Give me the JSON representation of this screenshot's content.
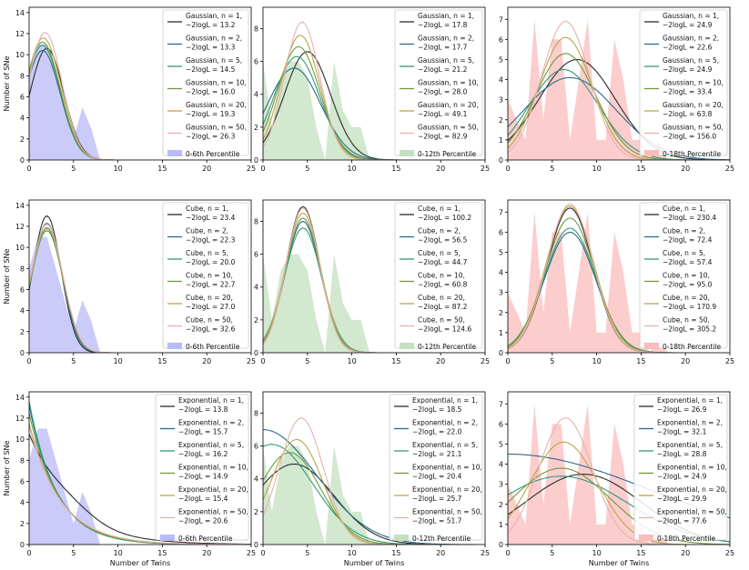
{
  "figure": {
    "ylabel": "Number of SNe",
    "xlabel": "Number of Twins",
    "xlim": [
      0,
      25
    ],
    "xticks": [
      0,
      5,
      10,
      15,
      20,
      25
    ]
  },
  "colors": {
    "n1": "#2b2b2b",
    "n2": "#2a6b8a",
    "n5": "#2f9a76",
    "n10": "#6e9a3a",
    "n20": "#b8a64a",
    "n50": "#e5b3ad",
    "fill6": "#b9baf7",
    "fill12": "#c3e0bf",
    "fill18": "#fbbcbc"
  },
  "chart_data": [
    {
      "type": "area+line",
      "row": 0,
      "col": 0,
      "model": "Gaussian",
      "percentile": "0-6th Percentile",
      "fillKey": "fill6",
      "ylim": [
        0,
        14.5
      ],
      "yticks": [
        0,
        2,
        4,
        6,
        8,
        10,
        12,
        14
      ],
      "hist": [
        8,
        11,
        11,
        8,
        5,
        2,
        5,
        3,
        0
      ],
      "series": [
        {
          "n": "1",
          "logl": "13.2",
          "peak_x": 2.0,
          "peak_y": 10.6,
          "sigma": 1.9
        },
        {
          "n": "2",
          "logl": "13.3",
          "peak_x": 1.5,
          "peak_y": 10.4,
          "sigma": 2.0
        },
        {
          "n": "5",
          "logl": "14.5",
          "peak_x": 1.5,
          "peak_y": 10.9,
          "sigma": 2.0
        },
        {
          "n": "10",
          "logl": "16.0",
          "peak_x": 1.5,
          "peak_y": 11.2,
          "sigma": 2.0
        },
        {
          "n": "20",
          "logl": "19.3",
          "peak_x": 1.6,
          "peak_y": 11.6,
          "sigma": 2.0
        },
        {
          "n": "50",
          "logl": "26.3",
          "peak_x": 1.8,
          "peak_y": 12.1,
          "sigma": 1.9
        }
      ]
    },
    {
      "type": "area+line",
      "row": 0,
      "col": 1,
      "model": "Gaussian",
      "percentile": "0-12th Percentile",
      "fillKey": "fill12",
      "ylim": [
        0,
        9.3
      ],
      "yticks": [
        0,
        2,
        4,
        6,
        8
      ],
      "hist": [
        6,
        2,
        5,
        6,
        6,
        5,
        2,
        0,
        6,
        3,
        2,
        2,
        0
      ],
      "series": [
        {
          "n": "1",
          "logl": "17.8",
          "peak_x": 5.0,
          "peak_y": 6.6,
          "sigma": 2.6
        },
        {
          "n": "2",
          "logl": "17.7",
          "peak_x": 3.5,
          "peak_y": 5.6,
          "sigma": 3.0
        },
        {
          "n": "5",
          "logl": "21.2",
          "peak_x": 3.8,
          "peak_y": 6.3,
          "sigma": 2.6
        },
        {
          "n": "10",
          "logl": "28.0",
          "peak_x": 4.0,
          "peak_y": 6.9,
          "sigma": 2.4
        },
        {
          "n": "20",
          "logl": "49.1",
          "peak_x": 4.2,
          "peak_y": 7.6,
          "sigma": 2.2
        },
        {
          "n": "50",
          "logl": "82.9",
          "peak_x": 4.4,
          "peak_y": 8.4,
          "sigma": 2.0
        }
      ]
    },
    {
      "type": "area+line",
      "row": 0,
      "col": 2,
      "model": "Gaussian",
      "percentile": "0-18th Percentile",
      "fillKey": "fill18",
      "ylim": [
        0,
        7.6
      ],
      "yticks": [
        0,
        1,
        2,
        3,
        4,
        5,
        6,
        7
      ],
      "hist": [
        3,
        2,
        1,
        7,
        2,
        6,
        6,
        1,
        4,
        7,
        1,
        1,
        6,
        4,
        1,
        1,
        0,
        1,
        0
      ],
      "series": [
        {
          "n": "1",
          "logl": "24.9",
          "peak_x": 7.8,
          "peak_y": 5.0,
          "sigma": 4.3
        },
        {
          "n": "2",
          "logl": "22.6",
          "peak_x": 7.0,
          "peak_y": 4.1,
          "sigma": 5.2
        },
        {
          "n": "5",
          "logl": "24.9",
          "peak_x": 6.3,
          "peak_y": 4.5,
          "sigma": 3.9
        },
        {
          "n": "10",
          "logl": "33.4",
          "peak_x": 6.5,
          "peak_y": 5.3,
          "sigma": 3.4
        },
        {
          "n": "20",
          "logl": "63.8",
          "peak_x": 6.5,
          "peak_y": 6.1,
          "sigma": 3.0
        },
        {
          "n": "50",
          "logl": "156.0",
          "peak_x": 6.5,
          "peak_y": 6.9,
          "sigma": 2.7
        }
      ]
    },
    {
      "type": "area+line",
      "row": 1,
      "col": 0,
      "model": "Cube",
      "percentile": "0-6th Percentile",
      "fillKey": "fill6",
      "ylim": [
        0,
        14.5
      ],
      "yticks": [
        0,
        2,
        4,
        6,
        8,
        10,
        12,
        14
      ],
      "hist": [
        8,
        11,
        11,
        8,
        5,
        2,
        5,
        3,
        0
      ],
      "series": [
        {
          "n": "1",
          "logl": "23.4",
          "peak_x": 2.0,
          "peak_y": 13.0,
          "sigma": 1.6
        },
        {
          "n": "2",
          "logl": "22.3",
          "peak_x": 2.0,
          "peak_y": 12.3,
          "sigma": 1.7
        },
        {
          "n": "5",
          "logl": "20.0",
          "peak_x": 2.0,
          "peak_y": 11.6,
          "sigma": 1.8
        },
        {
          "n": "10",
          "logl": "22.7",
          "peak_x": 2.0,
          "peak_y": 11.8,
          "sigma": 1.8
        },
        {
          "n": "20",
          "logl": "27.0",
          "peak_x": 2.0,
          "peak_y": 11.9,
          "sigma": 1.8
        },
        {
          "n": "50",
          "logl": "32.6",
          "peak_x": 2.0,
          "peak_y": 12.2,
          "sigma": 1.8
        }
      ]
    },
    {
      "type": "area+line",
      "row": 1,
      "col": 1,
      "model": "Cube",
      "percentile": "0-12th Percentile",
      "fillKey": "fill12",
      "ylim": [
        0,
        9.3
      ],
      "yticks": [
        0,
        2,
        4,
        6,
        8
      ],
      "hist": [
        6,
        2,
        5,
        6,
        6,
        5,
        2,
        0,
        6,
        3,
        2,
        2,
        0
      ],
      "series": [
        {
          "n": "1",
          "logl": "100.2",
          "peak_x": 4.5,
          "peak_y": 8.9,
          "sigma": 1.9
        },
        {
          "n": "2",
          "logl": "56.5",
          "peak_x": 4.5,
          "peak_y": 8.0,
          "sigma": 2.0
        },
        {
          "n": "5",
          "logl": "44.7",
          "peak_x": 4.5,
          "peak_y": 7.6,
          "sigma": 2.1
        },
        {
          "n": "10",
          "logl": "60.8",
          "peak_x": 4.5,
          "peak_y": 8.2,
          "sigma": 2.0
        },
        {
          "n": "20",
          "logl": "87.2",
          "peak_x": 4.5,
          "peak_y": 8.5,
          "sigma": 2.0
        },
        {
          "n": "50",
          "logl": "124.6",
          "peak_x": 4.5,
          "peak_y": 8.8,
          "sigma": 1.9
        }
      ]
    },
    {
      "type": "area+line",
      "row": 1,
      "col": 2,
      "model": "Cube",
      "percentile": "0-18th Percentile",
      "fillKey": "fill18",
      "ylim": [
        0,
        7.6
      ],
      "yticks": [
        0,
        1,
        2,
        3,
        4,
        5,
        6,
        7
      ],
      "hist": [
        3,
        2,
        1,
        7,
        2,
        6,
        6,
        1,
        4,
        7,
        1,
        1,
        6,
        4,
        1,
        1,
        0,
        1,
        0
      ],
      "series": [
        {
          "n": "1",
          "logl": "230.4",
          "peak_x": 7.0,
          "peak_y": 7.2,
          "sigma": 2.6
        },
        {
          "n": "2",
          "logl": "72.4",
          "peak_x": 7.0,
          "peak_y": 6.0,
          "sigma": 2.9
        },
        {
          "n": "5",
          "logl": "57.4",
          "peak_x": 7.0,
          "peak_y": 6.2,
          "sigma": 2.9
        },
        {
          "n": "10",
          "logl": "95.0",
          "peak_x": 7.0,
          "peak_y": 6.7,
          "sigma": 2.8
        },
        {
          "n": "20",
          "logl": "170.9",
          "peak_x": 7.0,
          "peak_y": 7.3,
          "sigma": 2.7
        },
        {
          "n": "50",
          "logl": "305.2",
          "peak_x": 7.0,
          "peak_y": 7.4,
          "sigma": 2.6
        }
      ]
    },
    {
      "type": "area+line",
      "row": 2,
      "col": 0,
      "model": "Exponential",
      "percentile": "0-6th Percentile",
      "fillKey": "fill6",
      "ylim": [
        0,
        14.5
      ],
      "yticks": [
        0,
        2,
        4,
        6,
        8,
        10,
        12,
        14
      ],
      "hist": [
        8,
        11,
        11,
        8,
        5,
        2,
        5,
        3,
        0
      ],
      "series": [
        {
          "n": "1",
          "logl": "13.8",
          "amp": 10.0,
          "decay": 4.5,
          "flat": 1.2
        },
        {
          "n": "2",
          "logl": "15.7",
          "amp": 13.2,
          "decay": 3.2,
          "flat": 0
        },
        {
          "n": "5",
          "logl": "16.2",
          "amp": 13.6,
          "decay": 3.1,
          "flat": 0
        },
        {
          "n": "10",
          "logl": "14.9",
          "amp": 12.5,
          "decay": 3.3,
          "flat": 0
        },
        {
          "n": "20",
          "logl": "15.4",
          "amp": 11.5,
          "decay": 3.5,
          "flat": 0
        },
        {
          "n": "50",
          "logl": "20.6",
          "amp": 11.2,
          "decay": 3.6,
          "flat": 0
        }
      ]
    },
    {
      "type": "area+line",
      "row": 2,
      "col": 1,
      "model": "Exponential",
      "percentile": "0-12th Percentile",
      "fillKey": "fill12",
      "ylim": [
        0,
        9.3
      ],
      "yticks": [
        0,
        2,
        4,
        6,
        8
      ],
      "hist": [
        6,
        2,
        5,
        6,
        6,
        5,
        2,
        0,
        6,
        3,
        2,
        2,
        0
      ],
      "series": [
        {
          "n": "1",
          "logl": "18.5",
          "peak_x": 3.5,
          "peak_y": 4.9,
          "sigma": 4.5
        },
        {
          "n": "2",
          "logl": "22.0",
          "peak_x": 0.0,
          "peak_y": 7.0,
          "sigma": 6.0
        },
        {
          "n": "5",
          "logl": "21.1",
          "peak_x": 1.0,
          "peak_y": 6.1,
          "sigma": 4.6
        },
        {
          "n": "10",
          "logl": "20.4",
          "peak_x": 3.0,
          "peak_y": 5.6,
          "sigma": 3.5
        },
        {
          "n": "20",
          "logl": "25.7",
          "peak_x": 3.8,
          "peak_y": 6.4,
          "sigma": 2.9
        },
        {
          "n": "50",
          "logl": "51.7",
          "peak_x": 4.3,
          "peak_y": 7.7,
          "sigma": 2.5
        }
      ]
    },
    {
      "type": "area+line",
      "row": 2,
      "col": 2,
      "model": "Exponential",
      "percentile": "0-18th Percentile",
      "fillKey": "fill18",
      "ylim": [
        0,
        7.6
      ],
      "yticks": [
        0,
        1,
        2,
        3,
        4,
        5,
        6,
        7
      ],
      "hist": [
        3,
        2,
        1,
        7,
        2,
        6,
        6,
        1,
        4,
        7,
        1,
        1,
        6,
        4,
        1,
        1,
        0,
        1,
        0
      ],
      "series": [
        {
          "n": "1",
          "logl": "26.9",
          "peak_x": 8.5,
          "peak_y": 3.5,
          "sigma": 6.5
        },
        {
          "n": "2",
          "logl": "32.1",
          "peak_x": 0.0,
          "peak_y": 4.5,
          "sigma": 16.0
        },
        {
          "n": "5",
          "logl": "28.8",
          "peak_x": 6.0,
          "peak_y": 3.4,
          "sigma": 7.5
        },
        {
          "n": "10",
          "logl": "24.9",
          "peak_x": 6.0,
          "peak_y": 3.8,
          "sigma": 5.5
        },
        {
          "n": "20",
          "logl": "29.9",
          "peak_x": 6.3,
          "peak_y": 5.1,
          "sigma": 3.8
        },
        {
          "n": "50",
          "logl": "77.6",
          "peak_x": 6.5,
          "peak_y": 6.3,
          "sigma": 3.0
        }
      ]
    }
  ]
}
